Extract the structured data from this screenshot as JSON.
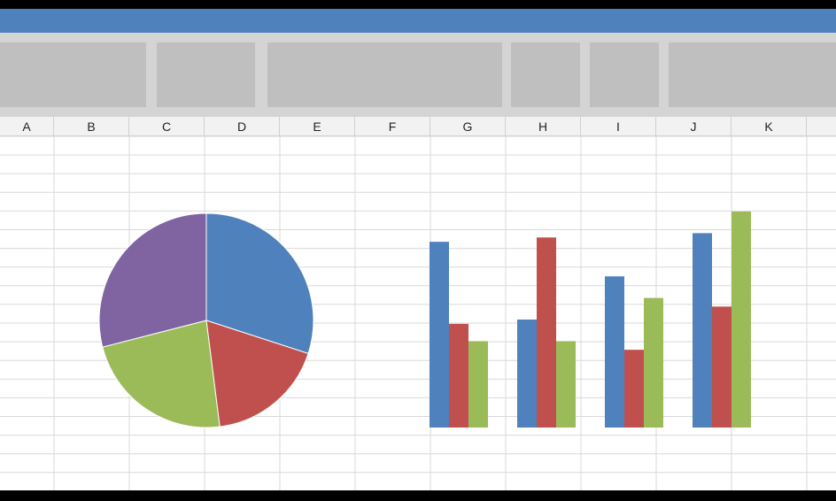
{
  "app": {
    "title": ""
  },
  "ribbon": {
    "groups": [
      "",
      "",
      "",
      "",
      "",
      ""
    ]
  },
  "columns": [
    "A",
    "B",
    "C",
    "D",
    "E",
    "F",
    "G",
    "H",
    "I",
    "J",
    "K"
  ],
  "colors": {
    "titlebar": "#4f81bd",
    "blue": "#4f81bd",
    "red": "#c0504d",
    "green": "#9bbb59",
    "purple": "#8064a2",
    "gridline": "#d9d9d9"
  },
  "chart_data": [
    {
      "type": "pie",
      "title": "",
      "slices": [
        {
          "value": 30,
          "color": "#4f81bd"
        },
        {
          "value": 18,
          "color": "#c0504d"
        },
        {
          "value": 23,
          "color": "#9bbb59"
        },
        {
          "value": 29,
          "color": "#8064a2"
        }
      ]
    },
    {
      "type": "bar",
      "title": "",
      "xlabel": "",
      "ylabel": "",
      "ylim": [
        0,
        100
      ],
      "categories": [
        "",
        "",
        "",
        ""
      ],
      "series": [
        {
          "color": "#4f81bd",
          "values": [
            86,
            50,
            70,
            90
          ]
        },
        {
          "color": "#c0504d",
          "values": [
            48,
            88,
            36,
            56
          ]
        },
        {
          "color": "#9bbb59",
          "values": [
            40,
            40,
            60,
            100
          ]
        }
      ]
    }
  ]
}
